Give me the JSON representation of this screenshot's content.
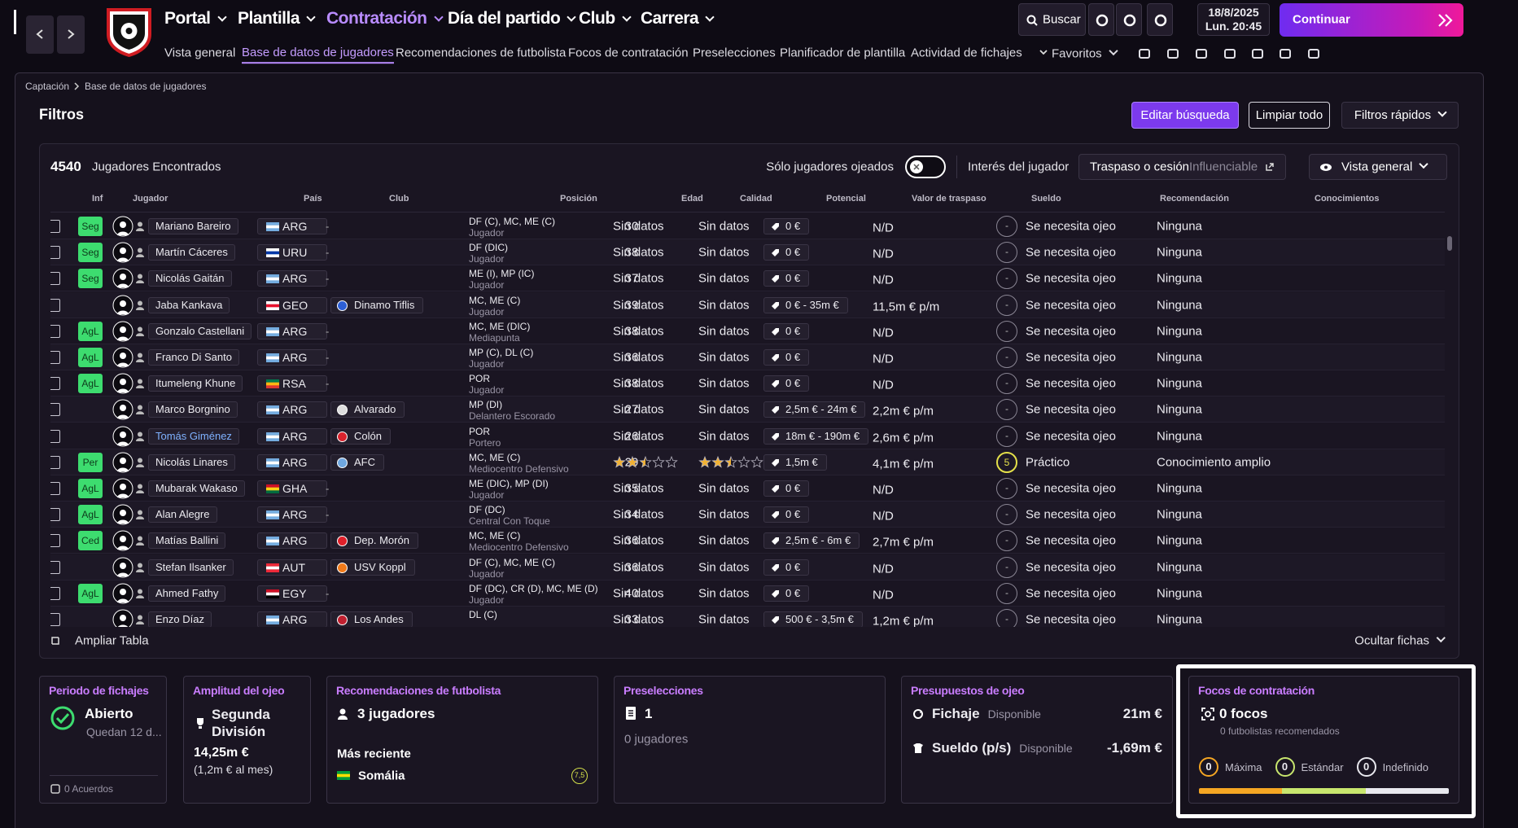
{
  "top_nav": {
    "menu": [
      "Portal",
      "Plantilla",
      "Contratación",
      "Día del partido",
      "Club",
      "Carrera"
    ],
    "active_menu": 2,
    "submenu": [
      "Vista general",
      "Base de datos de jugadores",
      "Recomendaciones de futbolista",
      "Focos de contratación",
      "Preselecciones",
      "Planificador de plantilla",
      "Actividad de fichajes"
    ],
    "active_submenu": 1,
    "favorites": "Favoritos",
    "search": "Buscar",
    "date": "18/8/2025",
    "time": "Lun. 20:45",
    "continue": "Continuar"
  },
  "breadcrumb": [
    "Captación",
    "Base de datos de jugadores"
  ],
  "filters": {
    "title": "Filtros",
    "buttons": [
      "Editar búsqueda",
      "Limpiar todo",
      "Filtros rápidos"
    ]
  },
  "results": {
    "count": 4540,
    "count_label": "Jugadores Encontrados",
    "scouted_only": "Sólo jugadores ojeados",
    "interest_label": "Interés del jugador",
    "interest_value": "Traspaso o cesión",
    "interest_note": "Influenciable",
    "view": "Vista general"
  },
  "table": {
    "columns": [
      "Inf",
      "Jugador",
      "País",
      "Club",
      "Posición",
      "Edad",
      "Calidad",
      "Potencial",
      "Valor de traspaso",
      "Sueldo",
      "Recomendación",
      "Conocimientos"
    ],
    "rows": [
      {
        "tag": "Seg",
        "name": "Mariano Bareiro",
        "country": "ARG",
        "flag": [
          "#74acdf",
          "#ffffff",
          "#74acdf"
        ],
        "club": "-",
        "position": "DF (C), MC, ME (C)",
        "role": "Jugador",
        "age": 30,
        "quality": "Sin datos",
        "potential": "Sin datos",
        "value": "0 €",
        "wage": "N/D",
        "score": "-",
        "recommendation": "Se necesita ojeo",
        "knowledge": "Ninguna"
      },
      {
        "tag": "Seg",
        "name": "Martín Cáceres",
        "country": "URU",
        "flag": [
          "#ffffff",
          "#0038a8",
          "#ffffff"
        ],
        "club": "-",
        "position": "DF (DIC)",
        "role": "Jugador",
        "age": 38,
        "quality": "Sin datos",
        "potential": "Sin datos",
        "value": "0 €",
        "wage": "N/D",
        "score": "-",
        "recommendation": "Se necesita ojeo",
        "knowledge": "Ninguna"
      },
      {
        "tag": "Seg",
        "name": "Nicolás Gaitán",
        "country": "ARG",
        "flag": [
          "#74acdf",
          "#ffffff",
          "#74acdf"
        ],
        "club": "-",
        "position": "ME (I), MP (IC)",
        "role": "Jugador",
        "age": 37,
        "quality": "Sin datos",
        "potential": "Sin datos",
        "value": "0 €",
        "wage": "N/D",
        "score": "-",
        "recommendation": "Se necesita ojeo",
        "knowledge": "Ninguna"
      },
      {
        "tag": null,
        "name": "Jaba Kankava",
        "country": "GEO",
        "flag": [
          "#ffffff",
          "#e8112d",
          "#ffffff"
        ],
        "club": "Dinamo Tiflis",
        "club_color": "#2d5fd6",
        "position": "MC, ME (C)",
        "role": "Jugador",
        "age": 39,
        "quality": "Sin datos",
        "potential": "Sin datos",
        "value": "0 € - 35m €",
        "wage": "11,5m € p/m",
        "score": "-",
        "recommendation": "Se necesita ojeo",
        "knowledge": "Ninguna"
      },
      {
        "tag": "AgL",
        "name": "Gonzalo Castellani",
        "country": "ARG",
        "flag": [
          "#74acdf",
          "#ffffff",
          "#74acdf"
        ],
        "club": "-",
        "position": "MC, ME (DIC)",
        "role": "Mediapunta",
        "age": 38,
        "quality": "Sin datos",
        "potential": "Sin datos",
        "value": "0 €",
        "wage": "N/D",
        "score": "-",
        "recommendation": "Se necesita ojeo",
        "knowledge": "Ninguna"
      },
      {
        "tag": "AgL",
        "name": "Franco Di Santo",
        "country": "ARG",
        "flag": [
          "#74acdf",
          "#ffffff",
          "#74acdf"
        ],
        "club": "-",
        "position": "MP (C), DL (C)",
        "role": "Jugador",
        "age": 36,
        "quality": "Sin datos",
        "potential": "Sin datos",
        "value": "0 €",
        "wage": "N/D",
        "score": "-",
        "recommendation": "Se necesita ojeo",
        "knowledge": "Ninguna"
      },
      {
        "tag": "AgL",
        "name": "Itumeleng Khune",
        "country": "RSA",
        "flag": [
          "#007a4d",
          "#ffb612",
          "#de3831"
        ],
        "club": "-",
        "position": "POR",
        "role": "Jugador",
        "age": 38,
        "quality": "Sin datos",
        "potential": "Sin datos",
        "value": "0 €",
        "wage": "N/D",
        "score": "-",
        "recommendation": "Se necesita ojeo",
        "knowledge": "Ninguna"
      },
      {
        "tag": null,
        "name": "Marco Borgnino",
        "country": "ARG",
        "flag": [
          "#74acdf",
          "#ffffff",
          "#74acdf"
        ],
        "club": "Alvarado",
        "club_color": "#dddddd",
        "position": "MP (DI)",
        "role": "Delantero Escorado",
        "age": 27,
        "quality": "Sin datos",
        "potential": "Sin datos",
        "value": "2,5m € - 24m €",
        "wage": "2,2m € p/m",
        "score": "-",
        "recommendation": "Se necesita ojeo",
        "knowledge": "Ninguna"
      },
      {
        "tag": null,
        "name": "Tomás Giménez",
        "name_color": "#7fb2ff",
        "country": "ARG",
        "flag": [
          "#74acdf",
          "#ffffff",
          "#74acdf"
        ],
        "club": "Colón",
        "club_color": "#d9232d",
        "position": "POR",
        "role": "Portero",
        "age": 26,
        "quality": "Sin datos",
        "potential": "Sin datos",
        "value": "18m € - 190m €",
        "wage": "2,6m € p/m",
        "score": "-",
        "recommendation": "Se necesita ojeo",
        "knowledge": "Ninguna"
      },
      {
        "tag": "Per",
        "name": "Nicolás Linares",
        "country": "ARG",
        "flag": [
          "#74acdf",
          "#ffffff",
          "#74acdf"
        ],
        "club": "AFC",
        "club_color": "#6fa7e0",
        "position": "MC, ME (C)",
        "role": "Mediocentro Defensivo",
        "age": 29,
        "quality": 2.5,
        "potential": 2.5,
        "value": "1,5m €",
        "wage": "4,1m € p/m",
        "score": 5,
        "recommendation": "Práctico",
        "knowledge": "Conocimiento amplio"
      },
      {
        "tag": "AgL",
        "name": "Mubarak Wakaso",
        "country": "GHA",
        "flag": [
          "#ce1126",
          "#fcd116",
          "#006b3f"
        ],
        "club": "-",
        "position": "ME (DIC), MP (DI)",
        "role": "Jugador",
        "age": 35,
        "quality": "Sin datos",
        "potential": "Sin datos",
        "value": "0 €",
        "wage": "N/D",
        "score": "-",
        "recommendation": "Se necesita ojeo",
        "knowledge": "Ninguna"
      },
      {
        "tag": "AgL",
        "name": "Alan Alegre",
        "country": "ARG",
        "flag": [
          "#74acdf",
          "#ffffff",
          "#74acdf"
        ],
        "club": "-",
        "position": "DF (DC)",
        "role": "Central Con Toque",
        "age": 34,
        "quality": "Sin datos",
        "potential": "Sin datos",
        "value": "0 €",
        "wage": "N/D",
        "score": "-",
        "recommendation": "Se necesita ojeo",
        "knowledge": "Ninguna"
      },
      {
        "tag": "Ced",
        "name": "Matías Ballini",
        "country": "ARG",
        "flag": [
          "#74acdf",
          "#ffffff",
          "#74acdf"
        ],
        "club": "Dep. Morón",
        "club_color": "#e0202a",
        "position": "MC, ME (C)",
        "role": "Mediocentro Defensivo",
        "age": 36,
        "quality": "Sin datos",
        "potential": "Sin datos",
        "value": "2,5m € - 6m €",
        "wage": "2,7m € p/m",
        "score": "-",
        "recommendation": "Se necesita ojeo",
        "knowledge": "Ninguna"
      },
      {
        "tag": null,
        "name": "Stefan Ilsanker",
        "country": "AUT",
        "flag": [
          "#ed2939",
          "#ffffff",
          "#ed2939"
        ],
        "club": "USV Koppl",
        "club_color": "#f07a1a",
        "position": "DF (C), MC, ME (C)",
        "role": "Jugador",
        "age": 36,
        "quality": "Sin datos",
        "potential": "Sin datos",
        "value": "0 €",
        "wage": "N/D",
        "score": "-",
        "recommendation": "Se necesita ojeo",
        "knowledge": "Ninguna"
      },
      {
        "tag": "AgL",
        "name": "Ahmed Fathy",
        "country": "EGY",
        "flag": [
          "#ce1126",
          "#ffffff",
          "#000000"
        ],
        "club": "-",
        "position": "DF (DC), CR (D), MC, ME (D)",
        "role": "Jugador",
        "age": 40,
        "quality": "Sin datos",
        "potential": "Sin datos",
        "value": "0 €",
        "wage": "N/D",
        "score": "-",
        "recommendation": "Se necesita ojeo",
        "knowledge": "Ninguna"
      },
      {
        "tag": null,
        "name": "Enzo Díaz",
        "country": "ARG",
        "flag": [
          "#74acdf",
          "#ffffff",
          "#74acdf"
        ],
        "club": "Los Andes",
        "club_color": "#c02030",
        "position": "DL (C)",
        "age": 33,
        "quality": "Sin datos",
        "potential": "Sin datos",
        "value": "500 € - 3,5m €",
        "wage": "1,2m € p/m",
        "score": "-",
        "recommendation": "Se necesita ojeo",
        "knowledge": "Ninguna"
      }
    ]
  },
  "table_footer": {
    "expand": "Ampliar Tabla",
    "hide": "Ocultar fichas"
  },
  "cards": [
    {
      "title": "Periodo de fichajes",
      "status": "Abierto",
      "note": "Quedan 12 d...",
      "deals": "0 Acuerdos"
    },
    {
      "title": "Amplitud del ojeo",
      "level": "Segunda División",
      "amount": "14,25m €",
      "monthly": "(1,2m € al mes)"
    },
    {
      "title": "Recomendaciones de futbolista",
      "count": "3 jugadores",
      "recent_label": "Más reciente",
      "recent_player": "Somália",
      "recent_flag": [
        "#009c3b",
        "#ffdf00",
        "#009c3b"
      ],
      "recent_rating": "7,5"
    },
    {
      "title": "Preselecciones",
      "count": 1,
      "players": "0 jugadores"
    },
    {
      "title": "Presupuestos de ojeo",
      "budgets": [
        {
          "name": "Fichaje",
          "status": "Disponible",
          "amount": "21m €"
        },
        {
          "name": "Sueldo (p/s)",
          "status": "Disponible",
          "amount": "-1,69m €"
        }
      ]
    },
    {
      "title": "Focos de contratación",
      "count": "0 focos",
      "recommended": "0 futbolistas recomendados",
      "levels": [
        {
          "count": 0,
          "name": "Máxima",
          "color": "#f5a623"
        },
        {
          "count": 0,
          "name": "Estándar",
          "color": "#c8e66e"
        },
        {
          "count": 0,
          "name": "Indefinido",
          "color": "#e8e8ee"
        }
      ]
    }
  ]
}
